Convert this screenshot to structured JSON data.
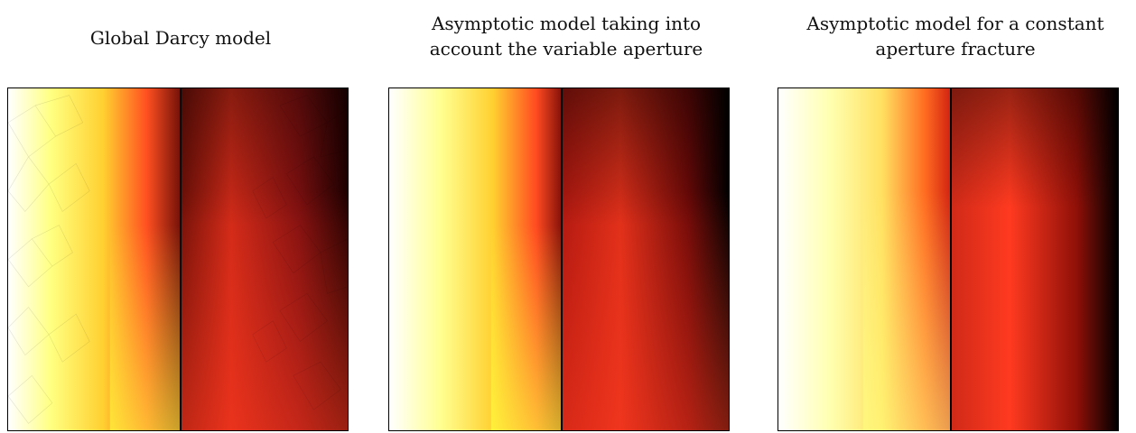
{
  "panels": [
    {
      "title_lines": [
        "Global Darcy model"
      ],
      "fracture_position": 0.51,
      "meshed": true
    },
    {
      "title_lines": [
        "Asymptotic model taking into",
        "account the variable aperture"
      ],
      "fracture_position": 0.51,
      "meshed": false
    },
    {
      "title_lines": [
        "Asymptotic model for a constant",
        "aperture fracture"
      ],
      "fracture_position": 0.51,
      "meshed": false
    }
  ],
  "colormap": [
    "#ffffff",
    "#ffff99",
    "#ffff33",
    "#ffb020",
    "#ff3a20",
    "#d01a10",
    "#800a08",
    "#000000"
  ]
}
